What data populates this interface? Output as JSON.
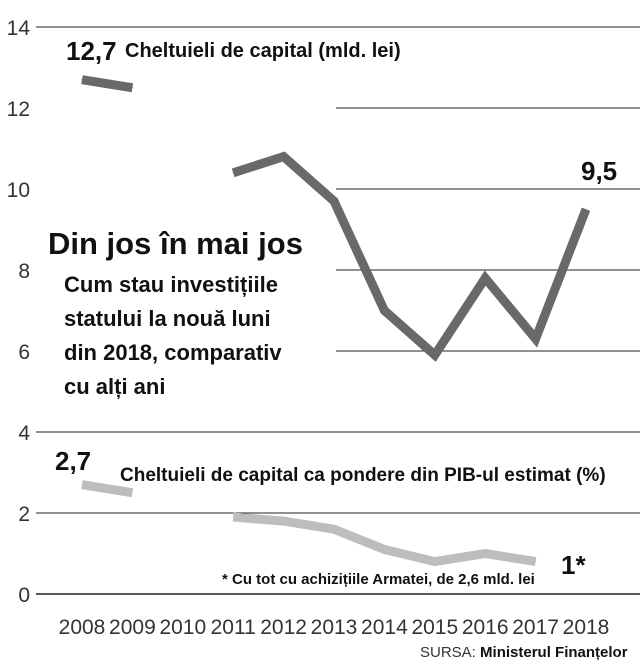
{
  "chart_data": {
    "type": "line",
    "title": "Din jos în mai jos",
    "subtitle": [
      "Cum stau investițiile",
      "statului la nouă luni",
      "din 2018, comparativ",
      "cu alți ani"
    ],
    "x": [
      2008,
      2009,
      2010,
      2011,
      2012,
      2013,
      2014,
      2015,
      2016,
      2017,
      2018
    ],
    "x_labels": [
      "2008",
      "2009",
      "2010",
      "2011",
      "2012",
      "2013",
      "2014",
      "2015",
      "2016",
      "2017",
      "2018"
    ],
    "ylim": [
      0,
      14
    ],
    "yticks": [
      "0",
      "2",
      "4",
      "6",
      "8",
      "10",
      "12",
      "14"
    ],
    "grid": true,
    "series": [
      {
        "name": "Cheltuieli de capital (mld. lei)",
        "color": "#696969",
        "segments": [
          [
            [
              2008,
              12.7
            ],
            [
              2009,
              12.5
            ]
          ],
          [
            [
              2011,
              10.4
            ],
            [
              2012,
              10.8
            ],
            [
              2013,
              9.7
            ],
            [
              2014,
              7.0
            ],
            [
              2015,
              5.9
            ],
            [
              2016,
              7.8
            ],
            [
              2017,
              6.3
            ],
            [
              2018,
              9.5
            ]
          ]
        ],
        "start_label": "12,7",
        "end_label": "9,5"
      },
      {
        "name": "Cheltuieli de capital ca pondere din PIB-ul estimat (%)",
        "color": "#bdbdbd",
        "segments": [
          [
            [
              2008,
              2.7
            ],
            [
              2009,
              2.5
            ]
          ],
          [
            [
              2011,
              1.9
            ],
            [
              2012,
              1.8
            ],
            [
              2013,
              1.6
            ],
            [
              2014,
              1.1
            ],
            [
              2015,
              0.8
            ],
            [
              2016,
              1.0
            ],
            [
              2017,
              0.8
            ]
          ]
        ],
        "start_label": "2,7",
        "end_label": "1*"
      }
    ],
    "footnote": "* Cu tot cu achizițiile Armatei, de 2,6 mld. lei",
    "source_prefix": "SURSA:",
    "source_name": "Ministerul Finanțelor"
  }
}
